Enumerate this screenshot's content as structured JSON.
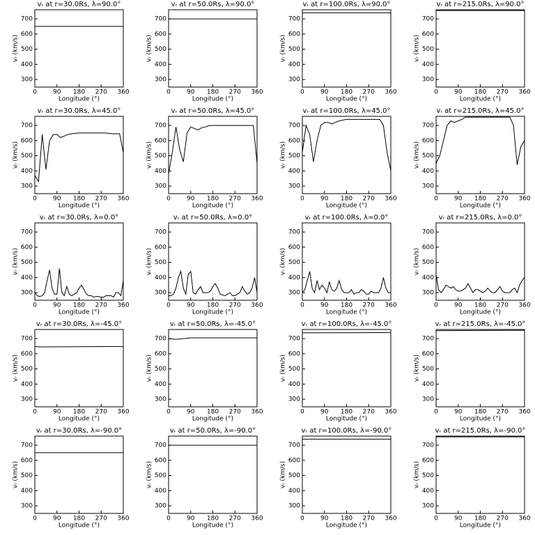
{
  "chart_data": [
    {
      "type": "line",
      "title": "vᵣ at r=30.0Rs, λ=90.0°",
      "xlabel": "Longitude (°)",
      "ylabel": "vᵣ (km/s)",
      "color": "#000000",
      "x": [
        0,
        360
      ],
      "values": [
        650,
        650
      ],
      "xlim": [
        0,
        360
      ],
      "ylim": [
        250,
        760
      ],
      "xticks": [
        0,
        90,
        180,
        270,
        360
      ],
      "yticks": [
        300,
        400,
        500,
        600,
        700
      ]
    },
    {
      "type": "line",
      "title": "vᵣ at r=50.0Rs, λ=90.0°",
      "xlabel": "Longitude (°)",
      "ylabel": "vᵣ (km/s)",
      "color": "#000000",
      "x": [
        0,
        360
      ],
      "values": [
        700,
        700
      ],
      "xlim": [
        0,
        360
      ],
      "ylim": [
        250,
        760
      ],
      "xticks": [
        0,
        90,
        180,
        270,
        360
      ],
      "yticks": [
        300,
        400,
        500,
        600,
        700
      ]
    },
    {
      "type": "line",
      "title": "vᵣ at r=100.0Rs, λ=90.0°",
      "xlabel": "Longitude (°)",
      "ylabel": "vᵣ (km/s)",
      "color": "#000000",
      "x": [
        0,
        360
      ],
      "values": [
        740,
        740
      ],
      "xlim": [
        0,
        360
      ],
      "ylim": [
        250,
        760
      ],
      "xticks": [
        0,
        90,
        180,
        270,
        360
      ],
      "yticks": [
        300,
        400,
        500,
        600,
        700
      ]
    },
    {
      "type": "line",
      "title": "vᵣ at r=215.0Rs, λ=90.0°",
      "xlabel": "Longitude (°)",
      "ylabel": "vᵣ (km/s)",
      "color": "#000000",
      "x": [
        0,
        360
      ],
      "values": [
        755,
        755
      ],
      "xlim": [
        0,
        360
      ],
      "ylim": [
        250,
        760
      ],
      "xticks": [
        0,
        90,
        180,
        270,
        360
      ],
      "yticks": [
        300,
        400,
        500,
        600,
        700
      ]
    },
    {
      "type": "line",
      "title": "vᵣ at r=30.0Rs, λ=45.0°",
      "xlabel": "Longitude (°)",
      "ylabel": "vᵣ (km/s)",
      "color": "#000000",
      "x": [
        0,
        15,
        30,
        45,
        60,
        75,
        90,
        105,
        120,
        135,
        150,
        165,
        180,
        195,
        210,
        225,
        240,
        255,
        270,
        285,
        300,
        315,
        330,
        345,
        360
      ],
      "values": [
        370,
        330,
        640,
        410,
        600,
        640,
        640,
        620,
        630,
        640,
        645,
        648,
        650,
        650,
        650,
        650,
        650,
        650,
        650,
        650,
        648,
        645,
        645,
        645,
        520
      ],
      "xlim": [
        0,
        360
      ],
      "ylim": [
        250,
        760
      ],
      "xticks": [
        0,
        90,
        180,
        270,
        360
      ],
      "yticks": [
        300,
        400,
        500,
        600,
        700
      ]
    },
    {
      "type": "line",
      "title": "vᵣ at r=50.0Rs, λ=45.0°",
      "xlabel": "Longitude (°)",
      "ylabel": "vᵣ (km/s)",
      "color": "#000000",
      "x": [
        0,
        15,
        30,
        45,
        60,
        75,
        90,
        105,
        120,
        135,
        150,
        165,
        180,
        195,
        210,
        225,
        240,
        255,
        270,
        285,
        300,
        315,
        330,
        345,
        360
      ],
      "values": [
        380,
        520,
        690,
        540,
        460,
        650,
        690,
        680,
        670,
        685,
        690,
        700,
        700,
        700,
        700,
        700,
        700,
        700,
        700,
        700,
        700,
        700,
        700,
        700,
        450
      ],
      "xlim": [
        0,
        360
      ],
      "ylim": [
        250,
        760
      ],
      "xticks": [
        0,
        90,
        180,
        270,
        360
      ],
      "yticks": [
        300,
        400,
        500,
        600,
        700
      ]
    },
    {
      "type": "line",
      "title": "vᵣ at r=100.0Rs, λ=45.0°",
      "xlabel": "Longitude (°)",
      "ylabel": "vᵣ (km/s)",
      "color": "#000000",
      "x": [
        0,
        15,
        30,
        45,
        60,
        75,
        90,
        105,
        120,
        135,
        150,
        165,
        180,
        195,
        210,
        225,
        240,
        255,
        270,
        285,
        300,
        315,
        330,
        345,
        360
      ],
      "values": [
        520,
        700,
        640,
        460,
        600,
        700,
        720,
        720,
        710,
        720,
        730,
        735,
        740,
        740,
        740,
        740,
        740,
        740,
        740,
        740,
        740,
        740,
        700,
        520,
        400
      ],
      "xlim": [
        0,
        360
      ],
      "ylim": [
        250,
        760
      ],
      "xticks": [
        0,
        90,
        180,
        270,
        360
      ],
      "yticks": [
        300,
        400,
        500,
        600,
        700
      ]
    },
    {
      "type": "line",
      "title": "vᵣ at r=215.0Rs, λ=45.0°",
      "xlabel": "Longitude (°)",
      "ylabel": "vᵣ (km/s)",
      "color": "#000000",
      "x": [
        0,
        15,
        30,
        45,
        60,
        75,
        90,
        105,
        120,
        135,
        150,
        165,
        180,
        195,
        210,
        225,
        240,
        255,
        270,
        285,
        300,
        315,
        330,
        345,
        360
      ],
      "values": [
        450,
        500,
        600,
        700,
        730,
        720,
        730,
        740,
        755,
        755,
        755,
        755,
        755,
        755,
        755,
        755,
        755,
        755,
        755,
        755,
        755,
        700,
        440,
        560,
        600
      ],
      "xlim": [
        0,
        360
      ],
      "ylim": [
        250,
        760
      ],
      "xticks": [
        0,
        90,
        180,
        270,
        360
      ],
      "yticks": [
        300,
        400,
        500,
        600,
        700
      ]
    },
    {
      "type": "line",
      "title": "vᵣ at r=30.0Rs, λ=0.0°",
      "xlabel": "Longitude (°)",
      "ylabel": "vᵣ (km/s)",
      "color": "#000000",
      "x": [
        0,
        10,
        20,
        30,
        40,
        50,
        60,
        70,
        80,
        90,
        100,
        110,
        120,
        130,
        140,
        150,
        160,
        170,
        180,
        190,
        200,
        210,
        220,
        230,
        240,
        250,
        260,
        270,
        280,
        290,
        300,
        310,
        320,
        330,
        340,
        350,
        360
      ],
      "values": [
        300,
        280,
        275,
        280,
        300,
        380,
        450,
        330,
        290,
        290,
        460,
        300,
        280,
        340,
        290,
        280,
        290,
        300,
        330,
        350,
        320,
        290,
        280,
        280,
        270,
        275,
        275,
        270,
        270,
        280,
        280,
        280,
        270,
        300,
        300,
        280,
        380
      ],
      "xlim": [
        0,
        360
      ],
      "ylim": [
        250,
        760
      ],
      "xticks": [
        0,
        90,
        180,
        270,
        360
      ],
      "yticks": [
        300,
        400,
        500,
        600,
        700
      ]
    },
    {
      "type": "line",
      "title": "vᵣ at r=50.0Rs, λ=0.0°",
      "xlabel": "Longitude (°)",
      "ylabel": "vᵣ (km/s)",
      "color": "#000000",
      "x": [
        0,
        10,
        20,
        30,
        40,
        50,
        60,
        70,
        80,
        90,
        100,
        110,
        120,
        130,
        140,
        150,
        160,
        170,
        180,
        190,
        200,
        210,
        220,
        230,
        240,
        250,
        260,
        270,
        280,
        290,
        300,
        310,
        320,
        330,
        340,
        350,
        360
      ],
      "values": [
        280,
        280,
        290,
        330,
        400,
        440,
        330,
        290,
        420,
        440,
        300,
        290,
        320,
        340,
        300,
        300,
        300,
        310,
        340,
        360,
        330,
        290,
        285,
        280,
        290,
        300,
        280,
        280,
        290,
        300,
        340,
        310,
        290,
        300,
        330,
        400,
        300
      ],
      "xlim": [
        0,
        360
      ],
      "ylim": [
        250,
        760
      ],
      "xticks": [
        0,
        90,
        180,
        270,
        360
      ],
      "yticks": [
        300,
        400,
        500,
        600,
        700
      ]
    },
    {
      "type": "line",
      "title": "vᵣ at r=100.0Rs, λ=0.0°",
      "xlabel": "Longitude (°)",
      "ylabel": "vᵣ (km/s)",
      "color": "#000000",
      "x": [
        0,
        10,
        20,
        30,
        40,
        50,
        60,
        70,
        80,
        90,
        100,
        110,
        120,
        130,
        140,
        150,
        160,
        170,
        180,
        190,
        200,
        210,
        220,
        230,
        240,
        250,
        260,
        270,
        280,
        290,
        300,
        310,
        320,
        330,
        340,
        350,
        360
      ],
      "values": [
        300,
        320,
        380,
        440,
        330,
        300,
        380,
        320,
        350,
        330,
        300,
        370,
        320,
        310,
        330,
        380,
        320,
        300,
        300,
        300,
        320,
        290,
        300,
        300,
        320,
        310,
        290,
        290,
        310,
        300,
        300,
        300,
        330,
        400,
        330,
        300,
        300
      ],
      "xlim": [
        0,
        360
      ],
      "ylim": [
        250,
        760
      ],
      "xticks": [
        0,
        90,
        180,
        270,
        360
      ],
      "yticks": [
        300,
        400,
        500,
        600,
        700
      ]
    },
    {
      "type": "line",
      "title": "vᵣ at r=215.0Rs, λ=0.0°",
      "xlabel": "Longitude (°)",
      "ylabel": "vᵣ (km/s)",
      "color": "#000000",
      "x": [
        0,
        10,
        20,
        30,
        40,
        50,
        60,
        70,
        80,
        90,
        100,
        110,
        120,
        130,
        140,
        150,
        160,
        170,
        180,
        190,
        200,
        210,
        220,
        230,
        240,
        250,
        260,
        270,
        280,
        290,
        300,
        310,
        320,
        330,
        340,
        350,
        360
      ],
      "values": [
        420,
        320,
        300,
        320,
        350,
        340,
        330,
        340,
        320,
        310,
        310,
        320,
        330,
        360,
        330,
        300,
        320,
        320,
        310,
        300,
        310,
        330,
        310,
        300,
        300,
        320,
        340,
        310,
        300,
        300,
        300,
        320,
        330,
        300,
        350,
        380,
        400
      ],
      "xlim": [
        0,
        360
      ],
      "ylim": [
        250,
        760
      ],
      "xticks": [
        0,
        90,
        180,
        270,
        360
      ],
      "yticks": [
        300,
        400,
        500,
        600,
        700
      ]
    },
    {
      "type": "line",
      "title": "vᵣ at r=30.0Rs, λ=-45.0°",
      "xlabel": "Longitude (°)",
      "ylabel": "vᵣ (km/s)",
      "color": "#000000",
      "x": [
        0,
        20,
        360
      ],
      "values": [
        648,
        645,
        648
      ],
      "xlim": [
        0,
        360
      ],
      "ylim": [
        250,
        760
      ],
      "xticks": [
        0,
        90,
        180,
        270,
        360
      ],
      "yticks": [
        300,
        400,
        500,
        600,
        700
      ]
    },
    {
      "type": "line",
      "title": "vᵣ at r=50.0Rs, λ=-45.0°",
      "xlabel": "Longitude (°)",
      "ylabel": "vᵣ (km/s)",
      "color": "#000000",
      "x": [
        0,
        30,
        90,
        360
      ],
      "values": [
        700,
        695,
        705,
        705
      ],
      "xlim": [
        0,
        360
      ],
      "ylim": [
        250,
        760
      ],
      "xticks": [
        0,
        90,
        180,
        270,
        360
      ],
      "yticks": [
        300,
        400,
        500,
        600,
        700
      ]
    },
    {
      "type": "line",
      "title": "vᵣ at r=100.0Rs, λ=-45.0°",
      "xlabel": "Longitude (°)",
      "ylabel": "vᵣ (km/s)",
      "color": "#000000",
      "x": [
        0,
        360
      ],
      "values": [
        738,
        740
      ],
      "xlim": [
        0,
        360
      ],
      "ylim": [
        250,
        760
      ],
      "xticks": [
        0,
        90,
        180,
        270,
        360
      ],
      "yticks": [
        300,
        400,
        500,
        600,
        700
      ]
    },
    {
      "type": "line",
      "title": "vᵣ at r=215.0Rs, λ=-45.0°",
      "xlabel": "Longitude (°)",
      "ylabel": "vᵣ (km/s)",
      "color": "#000000",
      "x": [
        0,
        360
      ],
      "values": [
        752,
        755
      ],
      "xlim": [
        0,
        360
      ],
      "ylim": [
        250,
        760
      ],
      "xticks": [
        0,
        90,
        180,
        270,
        360
      ],
      "yticks": [
        300,
        400,
        500,
        600,
        700
      ]
    },
    {
      "type": "line",
      "title": "vᵣ at r=30.0Rs, λ=-90.0°",
      "xlabel": "Longitude (°)",
      "ylabel": "vᵣ (km/s)",
      "color": "#000000",
      "x": [
        0,
        360
      ],
      "values": [
        650,
        650
      ],
      "xlim": [
        0,
        360
      ],
      "ylim": [
        250,
        760
      ],
      "xticks": [
        0,
        90,
        180,
        270,
        360
      ],
      "yticks": [
        300,
        400,
        500,
        600,
        700
      ]
    },
    {
      "type": "line",
      "title": "vᵣ at r=50.0Rs, λ=-90.0°",
      "xlabel": "Longitude (°)",
      "ylabel": "vᵣ (km/s)",
      "color": "#000000",
      "x": [
        0,
        360
      ],
      "values": [
        700,
        700
      ],
      "xlim": [
        0,
        360
      ],
      "ylim": [
        250,
        760
      ],
      "xticks": [
        0,
        90,
        180,
        270,
        360
      ],
      "yticks": [
        300,
        400,
        500,
        600,
        700
      ]
    },
    {
      "type": "line",
      "title": "vᵣ at r=100.0Rs, λ=-90.0°",
      "xlabel": "Longitude (°)",
      "ylabel": "vᵣ (km/s)",
      "color": "#000000",
      "x": [
        0,
        360
      ],
      "values": [
        740,
        740
      ],
      "xlim": [
        0,
        360
      ],
      "ylim": [
        250,
        760
      ],
      "xticks": [
        0,
        90,
        180,
        270,
        360
      ],
      "yticks": [
        300,
        400,
        500,
        600,
        700
      ]
    },
    {
      "type": "line",
      "title": "vᵣ at r=215.0Rs, λ=-90.0°",
      "xlabel": "Longitude (°)",
      "ylabel": "vᵣ (km/s)",
      "color": "#000000",
      "x": [
        0,
        360
      ],
      "values": [
        755,
        755
      ],
      "xlim": [
        0,
        360
      ],
      "ylim": [
        250,
        760
      ],
      "xticks": [
        0,
        90,
        180,
        270,
        360
      ],
      "yticks": [
        300,
        400,
        500,
        600,
        700
      ]
    }
  ]
}
